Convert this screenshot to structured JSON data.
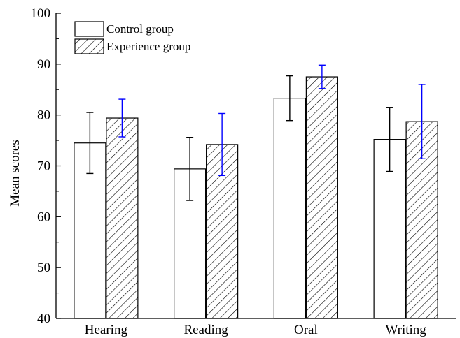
{
  "chart_data": {
    "type": "bar",
    "categories": [
      "Hearing",
      "Reading",
      "Oral",
      "Writing"
    ],
    "series": [
      {
        "name": "Control group",
        "fill": "white",
        "values": [
          74.5,
          69.4,
          83.3,
          75.2
        ],
        "errors": [
          6.0,
          6.2,
          4.4,
          6.3
        ],
        "error_color": "#000000"
      },
      {
        "name": "Experience group",
        "fill": "hatch",
        "values": [
          79.4,
          74.2,
          87.5,
          78.7
        ],
        "errors": [
          3.7,
          6.1,
          2.3,
          7.3
        ],
        "error_color": "#0000ff"
      }
    ],
    "ylabel": "Mean scores",
    "xlabel": "",
    "ylim": [
      40,
      100
    ],
    "yticks": [
      40,
      50,
      60,
      70,
      80,
      90,
      100
    ],
    "grid": false,
    "legend_position": "top-left"
  }
}
